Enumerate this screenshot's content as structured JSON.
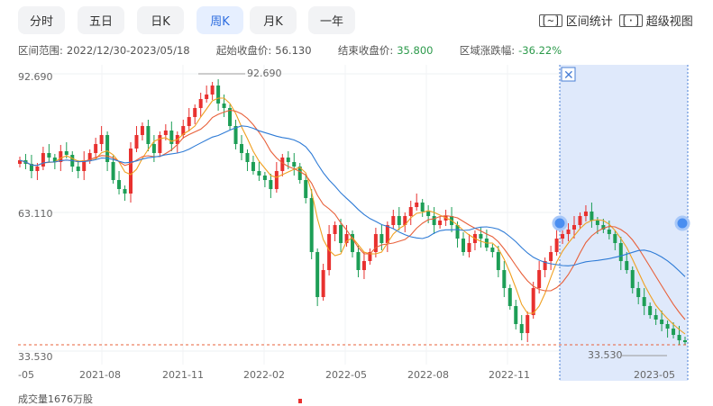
{
  "tabs": [
    {
      "label": "分时",
      "active": false
    },
    {
      "label": "五日",
      "active": false
    },
    {
      "label": "日K",
      "active": false
    },
    {
      "label": "周K",
      "active": true
    },
    {
      "label": "月K",
      "active": false
    },
    {
      "label": "一年",
      "active": false
    }
  ],
  "tools": {
    "range_stats": "区间统计",
    "super_view": "超级视图",
    "range_icon": "[~]",
    "view_icon": "[·]"
  },
  "info": {
    "range_label": "区间范围:",
    "range_value": "2022/12/30-2023/05/18",
    "start_label": "起始收盘价:",
    "start_value": "56.130",
    "end_label": "结束收盘价:",
    "end_value": "35.800",
    "change_label": "区域涨跌幅:",
    "change_value": "-36.22%"
  },
  "volume_label": "成交量1676万股",
  "colors": {
    "up": "#e8312f",
    "down": "#1d9e56",
    "ma5": "#f0a020",
    "ma10": "#e8603a",
    "ma20": "#2e7bd6",
    "selection": "#dfe9fb"
  },
  "chart_data": {
    "type": "candlestick",
    "y_ticks": [
      "92.690",
      "63.110",
      "33.530"
    ],
    "x_ticks": [
      "-05",
      "2021-08",
      "2021-11",
      "2022-02",
      "2022-05",
      "2022-08",
      "2022-11",
      "2023-05"
    ],
    "max_label": "92.690",
    "min_label": "33.530",
    "ylim": [
      33.53,
      92.69
    ],
    "selection_range": "2022/12/30-2023/05/18"
  }
}
